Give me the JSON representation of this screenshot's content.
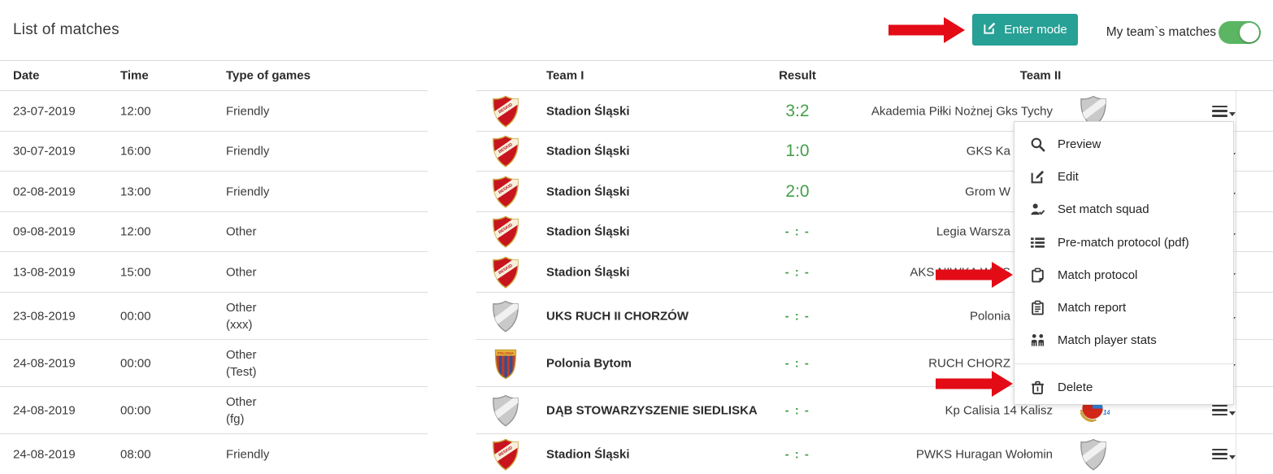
{
  "page": {
    "title": "List of matches"
  },
  "toolbar": {
    "enter_mode_label": "Enter mode",
    "enter_mode_icon": "edit-icon",
    "toggle_label": "My team`s matches",
    "toggle_state": "on"
  },
  "colors": {
    "accent_teal": "#27a095",
    "toggle_green": "#5bb563",
    "result_green": "#43a047",
    "arrow_red": "#e30b16"
  },
  "table": {
    "headers": {
      "date": "Date",
      "time": "Time",
      "type": "Type of games",
      "team1": "Team I",
      "result": "Result",
      "team2": "Team II"
    },
    "rows": [
      {
        "date": "23-07-2019",
        "time": "12:00",
        "type": "Friendly",
        "type2": "",
        "team1": "Stadion Śląski",
        "team1_logo": "beskid-shield-icon",
        "result": "3:2",
        "team2": "Akademia Piłki Nożnej Gks Tychy",
        "team2_logo": "gray-shield-icon"
      },
      {
        "date": "30-07-2019",
        "time": "16:00",
        "type": "Friendly",
        "type2": "",
        "team1": "Stadion Śląski",
        "team1_logo": "beskid-shield-icon",
        "result": "1:0",
        "team2": "GKS Ka",
        "team2_logo": null
      },
      {
        "date": "02-08-2019",
        "time": "13:00",
        "type": "Friendly",
        "type2": "",
        "team1": "Stadion Śląski",
        "team1_logo": "beskid-shield-icon",
        "result": "2:0",
        "team2": "Grom W",
        "team2_logo": null
      },
      {
        "date": "09-08-2019",
        "time": "12:00",
        "type": "Other",
        "type2": "",
        "team1": "Stadion Śląski",
        "team1_logo": "beskid-shield-icon",
        "result": "- : -",
        "team2": "Legia Warsza",
        "team2_logo": null
      },
      {
        "date": "13-08-2019",
        "time": "15:00",
        "type": "Other",
        "type2": "",
        "team1": "Stadion Śląski",
        "team1_logo": "beskid-shield-icon",
        "result": "- : -",
        "team2": "AKS NIWKA WA S",
        "team2_logo": null
      },
      {
        "date": "23-08-2019",
        "time": "00:00",
        "type": "Other",
        "type2": "(xxx)",
        "team1": "UKS RUCH II CHORZÓW",
        "team1_logo": "gray-shield-icon",
        "result": "- : -",
        "team2": "Polonia",
        "team2_logo": null
      },
      {
        "date": "24-08-2019",
        "time": "00:00",
        "type": "Other",
        "type2": "(Test)",
        "team1": "Polonia Bytom",
        "team1_logo": "polonia-badge-icon",
        "result": "- : -",
        "team2": "RUCH CHORZ",
        "team2_logo": null
      },
      {
        "date": "24-08-2019",
        "time": "00:00",
        "type": "Other",
        "type2": "(fg)",
        "team1": "DĄB STOWARZYSZENIE SIEDLISKA",
        "team1_logo": "gray-shield-icon",
        "result": "- : -",
        "team2": "Kp Calisia 14 Kalisz",
        "team2_logo": "calisia-badge-icon"
      },
      {
        "date": "24-08-2019",
        "time": "08:00",
        "type": "Friendly",
        "type2": "",
        "team1": "Stadion Śląski",
        "team1_logo": "beskid-shield-icon",
        "result": "- : -",
        "team2": "PWKS Huragan Wołomin",
        "team2_logo": "gray-shield-icon"
      }
    ]
  },
  "context_menu": {
    "items": [
      {
        "label": "Preview",
        "icon": "magnifier-icon",
        "separated": false
      },
      {
        "label": "Edit",
        "icon": "edit-icon",
        "separated": false
      },
      {
        "label": "Set match squad",
        "icon": "person-check-icon",
        "separated": false
      },
      {
        "label": "Pre-match protocol (pdf)",
        "icon": "list-icon",
        "separated": false
      },
      {
        "label": "Match protocol",
        "icon": "clipboard-icon",
        "separated": false
      },
      {
        "label": "Match report",
        "icon": "clipboard-lines-icon",
        "separated": false
      },
      {
        "label": "Match player stats",
        "icon": "people-icon",
        "separated": false
      },
      {
        "label": "Delete",
        "icon": "trash-icon",
        "separated": true
      }
    ]
  },
  "annotations": {
    "arrows": [
      {
        "points_at": "enter-mode-button"
      },
      {
        "points_at": "menu-item-match-protocol"
      },
      {
        "points_at": "menu-item-delete"
      }
    ]
  }
}
